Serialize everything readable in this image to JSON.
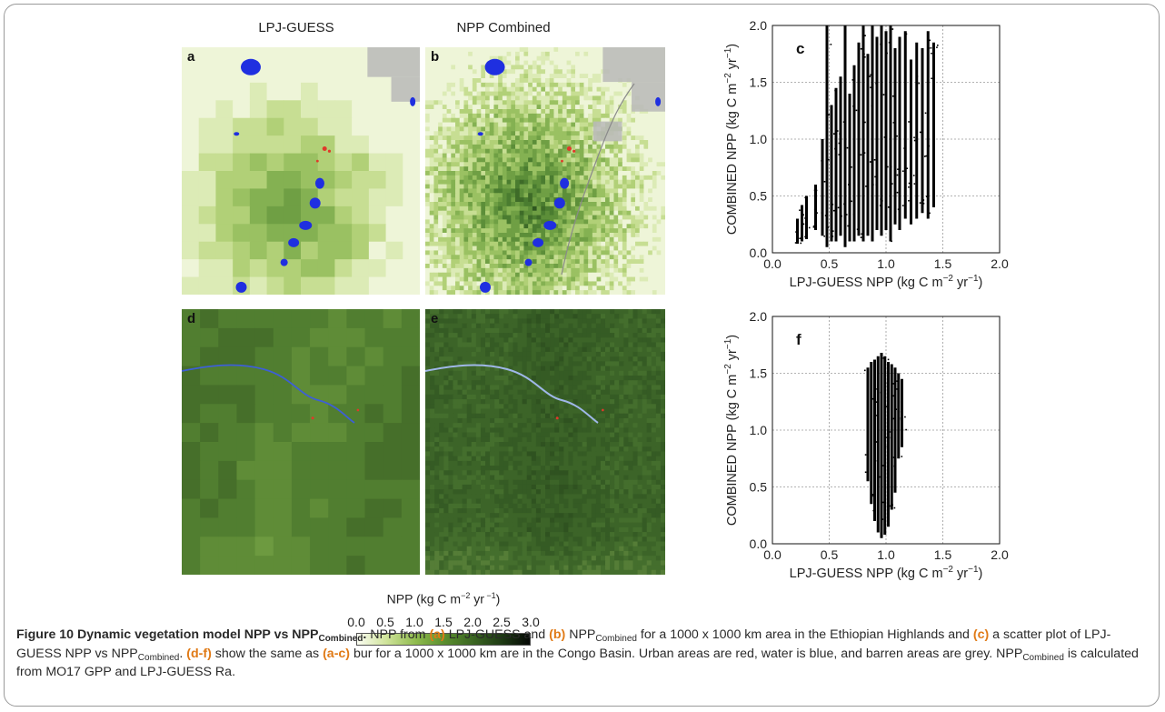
{
  "columns": {
    "left": "LPJ-GUESS",
    "right": "NPP Combined"
  },
  "panels": [
    {
      "letter": "a",
      "region": "ethiopian-highlands",
      "model": "lpj-guess"
    },
    {
      "letter": "b",
      "region": "ethiopian-highlands",
      "model": "combined"
    },
    {
      "letter": "d",
      "region": "congo-basin",
      "model": "lpj-guess"
    },
    {
      "letter": "e",
      "region": "congo-basin",
      "model": "combined"
    }
  ],
  "legend_colors": {
    "urban": "#e0392a",
    "water": "#1f2fe0",
    "barren": "#b9b9b9"
  },
  "colorbar": {
    "title_prefix": "NPP (kg C m",
    "title_sup1": "−2",
    "title_mid": " yr",
    "title_sup2": " −1",
    "title_suffix": ")",
    "ticks": [
      "0.0",
      "0.5",
      "1.0",
      "1.5",
      "2.0",
      "2.5",
      "3.0"
    ],
    "min": 0.0,
    "max": 3.0,
    "colors": [
      "#fbfdf2",
      "#cfe39a",
      "#8fbb4e",
      "#5c8f2f",
      "#3b6622",
      "#1e3a14",
      "#050805"
    ]
  },
  "chart_data": [
    {
      "type": "scatter",
      "panel": "c",
      "xlabel": "LPJ-GUESS NPP (kg C m^-2 yr^-1)",
      "ylabel": "COMBINED NPP (kg C m^-2 yr^-1)",
      "xlim": [
        0.0,
        2.0
      ],
      "ylim": [
        0.0,
        2.0
      ],
      "xticks": [
        "0.0",
        "0.5",
        "1.0",
        "1.5",
        "2.0"
      ],
      "yticks": [
        "0.0",
        "0.5",
        "1.0",
        "1.5",
        "2.0"
      ],
      "grid": true,
      "columns": [
        {
          "x": 0.22,
          "ymin": 0.08,
          "ymax": 0.3
        },
        {
          "x": 0.26,
          "ymin": 0.1,
          "ymax": 0.42
        },
        {
          "x": 0.3,
          "ymin": 0.12,
          "ymax": 0.5
        },
        {
          "x": 0.38,
          "ymin": 0.2,
          "ymax": 0.6
        },
        {
          "x": 0.44,
          "ymin": 0.15,
          "ymax": 1.0
        },
        {
          "x": 0.48,
          "ymin": 0.05,
          "ymax": 2.0
        },
        {
          "x": 0.52,
          "ymin": 0.1,
          "ymax": 1.3
        },
        {
          "x": 0.56,
          "ymin": 0.1,
          "ymax": 1.45
        },
        {
          "x": 0.6,
          "ymin": 0.15,
          "ymax": 1.55
        },
        {
          "x": 0.64,
          "ymin": 0.05,
          "ymax": 2.0
        },
        {
          "x": 0.68,
          "ymin": 0.1,
          "ymax": 1.4
        },
        {
          "x": 0.72,
          "ymin": 0.1,
          "ymax": 1.65
        },
        {
          "x": 0.76,
          "ymin": 0.15,
          "ymax": 1.85
        },
        {
          "x": 0.8,
          "ymin": 0.1,
          "ymax": 2.0
        },
        {
          "x": 0.84,
          "ymin": 0.15,
          "ymax": 1.75
        },
        {
          "x": 0.88,
          "ymin": 0.1,
          "ymax": 2.0
        },
        {
          "x": 0.92,
          "ymin": 0.2,
          "ymax": 1.9
        },
        {
          "x": 0.96,
          "ymin": 0.15,
          "ymax": 2.0
        },
        {
          "x": 1.0,
          "ymin": 0.2,
          "ymax": 1.95
        },
        {
          "x": 1.04,
          "ymin": 0.1,
          "ymax": 2.0
        },
        {
          "x": 1.08,
          "ymin": 0.25,
          "ymax": 1.8
        },
        {
          "x": 1.12,
          "ymin": 0.2,
          "ymax": 1.9
        },
        {
          "x": 1.17,
          "ymin": 0.3,
          "ymax": 1.95
        },
        {
          "x": 1.22,
          "ymin": 0.25,
          "ymax": 1.7
        },
        {
          "x": 1.27,
          "ymin": 0.3,
          "ymax": 1.85
        },
        {
          "x": 1.32,
          "ymin": 0.35,
          "ymax": 1.8
        },
        {
          "x": 1.37,
          "ymin": 0.3,
          "ymax": 1.95
        },
        {
          "x": 1.42,
          "ymin": 0.4,
          "ymax": 1.85
        }
      ]
    },
    {
      "type": "scatter",
      "panel": "f",
      "xlabel": "LPJ-GUESS NPP (kg C m^-2 yr^-1)",
      "ylabel": "COMBINED NPP (kg C m^-2 yr^-1)",
      "xlim": [
        0.0,
        2.0
      ],
      "ylim": [
        0.0,
        2.0
      ],
      "xticks": [
        "0.0",
        "0.5",
        "1.0",
        "1.5",
        "2.0"
      ],
      "yticks": [
        "0.0",
        "0.5",
        "1.0",
        "1.5",
        "2.0"
      ],
      "grid": true,
      "columns": [
        {
          "x": 0.84,
          "ymin": 0.55,
          "ymax": 1.55
        },
        {
          "x": 0.87,
          "ymin": 0.35,
          "ymax": 1.6
        },
        {
          "x": 0.9,
          "ymin": 0.2,
          "ymax": 1.62
        },
        {
          "x": 0.93,
          "ymin": 0.1,
          "ymax": 1.65
        },
        {
          "x": 0.96,
          "ymin": 0.05,
          "ymax": 1.68
        },
        {
          "x": 0.99,
          "ymin": 0.08,
          "ymax": 1.65
        },
        {
          "x": 1.02,
          "ymin": 0.15,
          "ymax": 1.6
        },
        {
          "x": 1.05,
          "ymin": 0.3,
          "ymax": 1.58
        },
        {
          "x": 1.08,
          "ymin": 0.45,
          "ymax": 1.55
        },
        {
          "x": 1.11,
          "ymin": 0.75,
          "ymax": 1.5
        },
        {
          "x": 1.14,
          "ymin": 0.85,
          "ymax": 1.45
        }
      ]
    }
  ],
  "caption": {
    "fig_label": "Figure 10 Dynamic vegetation model NPP vs NPP",
    "fig_label_sub": "Combined",
    "fig_label_end": ".",
    "t1": " NPP from ",
    "ra": "(a)",
    "t2": " LPJ-GUESS and ",
    "rb": "(b)",
    "t3": " NPP",
    "s1": "Combined",
    "t4": " for a 1000 x 1000 km area in the Ethiopian Highlands and ",
    "rc": "(c)",
    "t5": " a scatter plot of LPJ-GUESS NPP vs NPP",
    "s2": "Combined",
    "t6": ". ",
    "rdf": "(d-f)",
    "t7": " show the same as ",
    "rac": "(a-c)",
    "t8": " bur for a 1000 x 1000 km are in the Congo Basin. Urban areas are red, water is blue, and barren areas are grey. NPP",
    "s3": "Combined",
    "t9": " is calculated from MO17 GPP and LPJ-GUESS Ra."
  }
}
